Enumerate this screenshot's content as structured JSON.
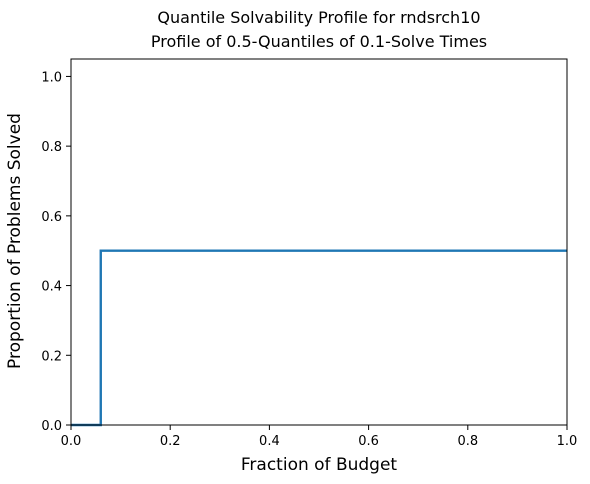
{
  "chart_data": {
    "type": "line",
    "title": "Quantile Solvability Profile for rndsrch10",
    "subtitle": "Profile of 0.5-Quantiles of 0.1-Solve Times",
    "xlabel": "Fraction of Budget",
    "ylabel": "Proportion of Problems Solved",
    "xlim": [
      0.0,
      1.0
    ],
    "ylim": [
      0.0,
      1.05
    ],
    "xticks": [
      0.0,
      0.2,
      0.4,
      0.6,
      0.8,
      1.0
    ],
    "xtick_labels": [
      "0.0",
      "0.2",
      "0.4",
      "0.6",
      "0.8",
      "1.0"
    ],
    "yticks": [
      0.0,
      0.2,
      0.4,
      0.6,
      0.8,
      1.0
    ],
    "ytick_labels": [
      "0.0",
      "0.2",
      "0.4",
      "0.6",
      "0.8",
      "1.0"
    ],
    "grid": false,
    "series": [
      {
        "color": "#1f77b4",
        "step": "post",
        "x": [
          0.0,
          0.06,
          1.0
        ],
        "y": [
          0.0,
          0.5,
          0.5
        ]
      }
    ]
  }
}
